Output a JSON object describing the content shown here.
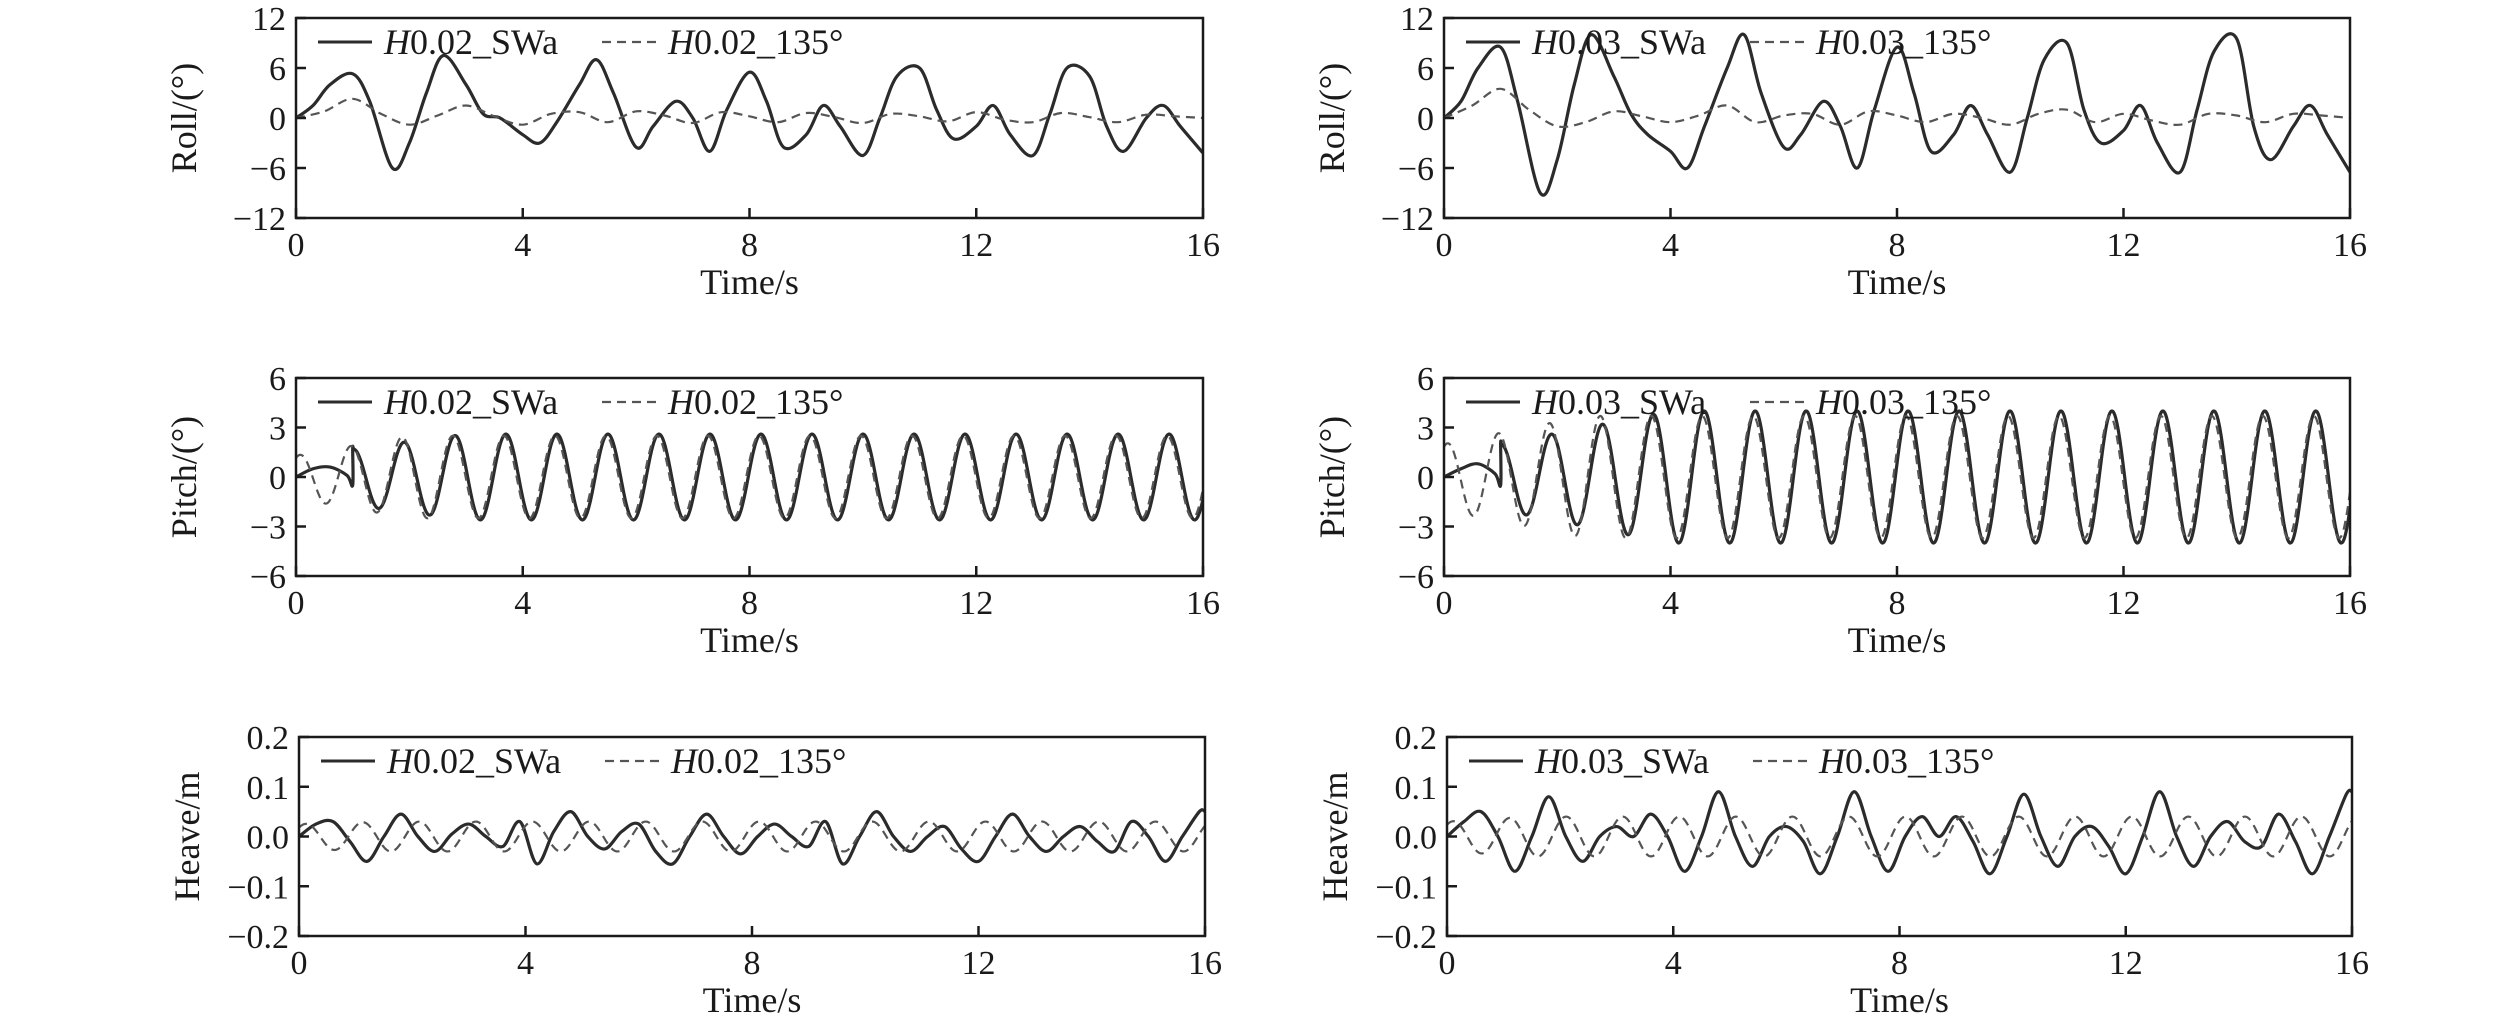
{
  "chart_data": [
    {
      "type": "line",
      "panel": "roll-h002",
      "xlabel": "Time/s",
      "ylabel": "Roll/(°)",
      "xlim": [
        0,
        16
      ],
      "ylim": [
        -12,
        12
      ],
      "xticks": [
        "0",
        "4",
        "8",
        "12",
        "16"
      ],
      "yticks": [
        "−12",
        "−6",
        "0",
        "6",
        "12"
      ],
      "legend_position": "top-left",
      "grid": false,
      "series": [
        {
          "name": "H0.02_SWa",
          "name_prefix": "H",
          "name_suffix": "0.02_SWa",
          "style": "solid",
          "x": [
            0,
            0.3,
            0.6,
            1.0,
            1.3,
            1.7,
            2.0,
            2.3,
            2.6,
            3.0,
            3.3,
            3.6,
            4.0,
            4.3,
            4.6,
            5.0,
            5.3,
            5.6,
            6.0,
            6.3,
            6.7,
            7.0,
            7.3,
            7.6,
            8.0,
            8.3,
            8.6,
            9.0,
            9.3,
            9.6,
            10.0,
            10.3,
            10.6,
            11.0,
            11.3,
            11.6,
            12.0,
            12.3,
            12.6,
            13.0,
            13.3,
            13.6,
            14.0,
            14.3,
            14.6,
            15.0,
            15.3,
            15.6,
            16.0
          ],
          "y": [
            0,
            1.5,
            4,
            5.3,
            2,
            -6,
            -3,
            3,
            7.5,
            4,
            0.5,
            0,
            -2,
            -3,
            -0.5,
            4,
            7,
            3,
            -3.5,
            -1,
            2,
            0,
            -4,
            1,
            5.5,
            2,
            -3.5,
            -2,
            1.5,
            -1,
            -4.5,
            0,
            5,
            6,
            1,
            -2.5,
            -1,
            1.5,
            -2,
            -4.5,
            0.5,
            6,
            5,
            -1,
            -4,
            0,
            1.5,
            -1,
            -4.2
          ]
        },
        {
          "name": "H0.02_135°",
          "name_prefix": "H",
          "name_suffix": "0.02_135°",
          "style": "dashed",
          "x": [
            0,
            0.5,
            1.0,
            1.5,
            2.0,
            2.5,
            3.0,
            3.5,
            4.0,
            4.5,
            5.0,
            5.5,
            6.0,
            6.5,
            7.0,
            7.5,
            8.0,
            8.5,
            9.0,
            9.5,
            10.0,
            10.5,
            11.0,
            11.5,
            12.0,
            12.5,
            13.0,
            13.5,
            14.0,
            14.5,
            15.0,
            15.5,
            16.0
          ],
          "y": [
            0,
            0.8,
            2.3,
            0.5,
            -0.8,
            0.3,
            1.5,
            0.2,
            -0.8,
            0.5,
            0.7,
            -0.5,
            0.8,
            0.3,
            -0.6,
            0.7,
            0.2,
            -0.5,
            0.6,
            0.1,
            -0.6,
            0.5,
            0.2,
            -0.4,
            0.7,
            -0.2,
            -0.5,
            0.6,
            0.1,
            -0.5,
            0.4,
            0.2,
            0
          ]
        }
      ]
    },
    {
      "type": "line",
      "panel": "roll-h003",
      "xlabel": "Time/s",
      "ylabel": "Roll/(°)",
      "xlim": [
        0,
        16
      ],
      "ylim": [
        -12,
        12
      ],
      "xticks": [
        "0",
        "4",
        "8",
        "12",
        "16"
      ],
      "yticks": [
        "−12",
        "−6",
        "0",
        "6",
        "12"
      ],
      "legend_position": "top-left",
      "grid": false,
      "series": [
        {
          "name": "H0.03_SWa",
          "name_prefix": "H",
          "name_suffix": "0.03_SWa",
          "style": "solid",
          "x": [
            0,
            0.3,
            0.6,
            1.0,
            1.3,
            1.7,
            2.0,
            2.3,
            2.6,
            3.0,
            3.3,
            3.6,
            4.0,
            4.3,
            4.6,
            5.0,
            5.3,
            5.6,
            6.0,
            6.3,
            6.7,
            7.0,
            7.3,
            7.6,
            8.0,
            8.3,
            8.6,
            9.0,
            9.3,
            9.6,
            10.0,
            10.3,
            10.6,
            11.0,
            11.3,
            11.6,
            12.0,
            12.3,
            12.6,
            13.0,
            13.3,
            13.6,
            14.0,
            14.3,
            14.6,
            15.0,
            15.3,
            15.6,
            16.0
          ],
          "y": [
            0,
            2,
            6,
            8.5,
            2,
            -9,
            -5,
            4,
            10,
            5,
            0.5,
            -2,
            -4,
            -6,
            -1,
            6,
            10,
            3,
            -3.5,
            -2,
            2,
            -1,
            -6,
            1,
            8.5,
            3,
            -4,
            -2,
            1.5,
            -2,
            -6.5,
            0,
            7,
            9,
            1,
            -3,
            -1.5,
            1.5,
            -3,
            -6.5,
            1,
            8,
            9.5,
            -1,
            -5,
            -1,
            1.5,
            -2,
            -6.5
          ]
        },
        {
          "name": "H0.03_135°",
          "name_prefix": "H",
          "name_suffix": "0.03_135°",
          "style": "dashed",
          "x": [
            0,
            0.5,
            1.0,
            1.5,
            2.0,
            2.5,
            3.0,
            3.5,
            4.0,
            4.5,
            5.0,
            5.5,
            6.0,
            6.5,
            7.0,
            7.5,
            8.0,
            8.5,
            9.0,
            9.5,
            10.0,
            10.5,
            11.0,
            11.5,
            12.0,
            12.5,
            13.0,
            13.5,
            14.0,
            14.5,
            15.0,
            15.5,
            16.0
          ],
          "y": [
            0,
            1.5,
            3.5,
            1,
            -1,
            -0.5,
            0.8,
            0.2,
            -0.5,
            0.3,
            1.5,
            -0.5,
            0.3,
            0.5,
            -0.8,
            0.8,
            0.3,
            -0.5,
            0.5,
            0,
            -0.8,
            0.5,
            1,
            -0.5,
            0.5,
            -0.3,
            -0.8,
            0.5,
            0.3,
            -0.5,
            0.5,
            0.3,
            0
          ]
        }
      ]
    },
    {
      "type": "line",
      "panel": "pitch-h002",
      "xlabel": "Time/s",
      "ylabel": "Pitch/(°)",
      "xlim": [
        0,
        16
      ],
      "ylim": [
        -6,
        6
      ],
      "xticks": [
        "0",
        "4",
        "8",
        "12",
        "16"
      ],
      "yticks": [
        "−6",
        "−3",
        "0",
        "3",
        "6"
      ],
      "legend_position": "top-left",
      "grid": false,
      "series": [
        {
          "name": "H0.02_SWa",
          "name_prefix": "H",
          "name_suffix": "0.02_SWa",
          "style": "solid",
          "oscillation": {
            "t_start": 1.0,
            "t_end": 16,
            "period": 0.9,
            "phase": 1.55,
            "amp_start": 1.7,
            "amp_end": 2.6,
            "ramp_until": 3.0,
            "lead_x": [
              0,
              0.3,
              0.6,
              0.9,
              1.0
            ],
            "lead_y": [
              0,
              0.5,
              0.6,
              0.1,
              -0.5
            ]
          }
        },
        {
          "name": "H0.02_135°",
          "name_prefix": "H",
          "name_suffix": "0.02_135°",
          "style": "dashed",
          "oscillation": {
            "t_start": 0,
            "t_end": 16,
            "period": 0.9,
            "phase": 1.1,
            "amp_start": 1.3,
            "amp_end": 2.5,
            "ramp_until": 2.0,
            "lead_x": [],
            "lead_y": []
          }
        }
      ]
    },
    {
      "type": "line",
      "panel": "pitch-h003",
      "xlabel": "Time/s",
      "ylabel": "Pitch/(°)",
      "xlim": [
        0,
        16
      ],
      "ylim": [
        -6,
        6
      ],
      "xticks": [
        "0",
        "4",
        "8",
        "12",
        "16"
      ],
      "yticks": [
        "−6",
        "−3",
        "0",
        "3",
        "6"
      ],
      "legend_position": "top-left",
      "grid": false,
      "series": [
        {
          "name": "H0.03_SWa",
          "name_prefix": "H",
          "name_suffix": "0.03_SWa",
          "style": "solid",
          "oscillation": {
            "t_start": 1.0,
            "t_end": 16,
            "period": 0.9,
            "phase": 1.6,
            "amp_start": 2.0,
            "amp_end": 4.0,
            "ramp_until": 4.0,
            "lead_x": [
              0,
              0.3,
              0.6,
              0.9,
              1.0
            ],
            "lead_y": [
              0,
              0.5,
              0.8,
              0.2,
              -0.5
            ]
          }
        },
        {
          "name": "H0.03_135°",
          "name_prefix": "H",
          "name_suffix": "0.03_135°",
          "style": "dashed",
          "oscillation": {
            "t_start": 0,
            "t_end": 16,
            "period": 0.9,
            "phase": 1.15,
            "amp_start": 2.0,
            "amp_end": 3.7,
            "ramp_until": 2.5,
            "lead_x": [],
            "lead_y": []
          }
        }
      ]
    },
    {
      "type": "line",
      "panel": "heave-h002",
      "xlabel": "Time/s",
      "ylabel": "Heave/m",
      "xlim": [
        0,
        16
      ],
      "ylim": [
        -0.2,
        0.2
      ],
      "xticks": [
        "0",
        "4",
        "8",
        "12",
        "16"
      ],
      "yticks": [
        "−0.2",
        "−0.1",
        "0.0",
        "0.1",
        "0.2"
      ],
      "legend_position": "top-left",
      "grid": false,
      "series": [
        {
          "name": "H0.02_SWa",
          "name_prefix": "H",
          "name_suffix": "0.02_SWa",
          "style": "solid",
          "x": [
            0,
            0.3,
            0.6,
            0.9,
            1.2,
            1.5,
            1.8,
            2.1,
            2.4,
            2.7,
            3.0,
            3.3,
            3.6,
            3.9,
            4.2,
            4.5,
            4.8,
            5.1,
            5.4,
            5.7,
            6.0,
            6.3,
            6.6,
            6.9,
            7.2,
            7.5,
            7.8,
            8.1,
            8.4,
            8.7,
            9.0,
            9.3,
            9.6,
            9.9,
            10.2,
            10.5,
            10.8,
            11.1,
            11.4,
            11.7,
            12.0,
            12.3,
            12.6,
            12.9,
            13.2,
            13.5,
            13.8,
            14.1,
            14.4,
            14.7,
            15.0,
            15.3,
            15.6,
            15.9,
            16.0
          ],
          "y": [
            0,
            0.025,
            0.03,
            -0.01,
            -0.05,
            0,
            0.045,
            0,
            -0.03,
            0.005,
            0.025,
            0,
            -0.02,
            0.03,
            -0.055,
            0.01,
            0.05,
            0,
            -0.025,
            0.01,
            0.025,
            -0.03,
            -0.055,
            0,
            0.045,
            0,
            -0.035,
            0,
            0.025,
            0,
            -0.02,
            0.03,
            -0.055,
            0,
            0.05,
            0,
            -0.03,
            0,
            0.02,
            -0.025,
            -0.05,
            0,
            0.045,
            0,
            -0.03,
            0,
            0.02,
            -0.01,
            -0.03,
            0.03,
            0,
            -0.05,
            0,
            0.05,
            0.05
          ]
        },
        {
          "name": "H0.02_135°",
          "name_prefix": "H",
          "name_suffix": "0.02_135°",
          "style": "dashed",
          "oscillation": {
            "t_start": 0,
            "t_end": 16,
            "period": 1.0,
            "phase": 0.8,
            "amp_start": 0.025,
            "amp_end": 0.03,
            "ramp_until": 1.5,
            "lead_x": [],
            "lead_y": []
          }
        }
      ]
    },
    {
      "type": "line",
      "panel": "heave-h003",
      "xlabel": "Time/s",
      "ylabel": "Heave/m",
      "xlim": [
        0,
        16
      ],
      "ylim": [
        -0.2,
        0.2
      ],
      "xticks": [
        "0",
        "4",
        "8",
        "12",
        "16"
      ],
      "yticks": [
        "−0.2",
        "−0.1",
        "0.0",
        "0.1",
        "0.2"
      ],
      "legend_position": "top-left",
      "grid": false,
      "series": [
        {
          "name": "H0.03_SWa",
          "name_prefix": "H",
          "name_suffix": "0.03_SWa",
          "style": "solid",
          "x": [
            0,
            0.3,
            0.6,
            0.9,
            1.2,
            1.5,
            1.8,
            2.1,
            2.4,
            2.7,
            3.0,
            3.3,
            3.6,
            3.9,
            4.2,
            4.5,
            4.8,
            5.1,
            5.4,
            5.7,
            6.0,
            6.3,
            6.6,
            6.9,
            7.2,
            7.5,
            7.8,
            8.1,
            8.4,
            8.7,
            9.0,
            9.3,
            9.6,
            9.9,
            10.2,
            10.5,
            10.8,
            11.1,
            11.4,
            11.7,
            12.0,
            12.3,
            12.6,
            12.9,
            13.2,
            13.5,
            13.8,
            14.1,
            14.4,
            14.7,
            15.0,
            15.3,
            15.6,
            15.9,
            16.0
          ],
          "y": [
            0,
            0.03,
            0.05,
            0,
            -0.07,
            0,
            0.08,
            0,
            -0.05,
            0,
            0.02,
            0,
            0.045,
            0,
            -0.07,
            0,
            0.09,
            0,
            -0.06,
            0,
            0.02,
            -0.01,
            -0.075,
            0,
            0.09,
            0,
            -0.07,
            0,
            0.04,
            0,
            0.04,
            -0.01,
            -0.075,
            0,
            0.085,
            0,
            -0.06,
            0,
            0.02,
            -0.02,
            -0.075,
            0,
            0.09,
            0,
            -0.06,
            0,
            0.03,
            -0.01,
            -0.02,
            0.045,
            -0.01,
            -0.075,
            0,
            0.085,
            0.09
          ]
        },
        {
          "name": "H0.03_135°",
          "name_prefix": "H",
          "name_suffix": "0.03_135°",
          "style": "dashed",
          "oscillation": {
            "t_start": 0,
            "t_end": 16,
            "period": 1.0,
            "phase": 0.9,
            "amp_start": 0.03,
            "amp_end": 0.04,
            "ramp_until": 1.5,
            "lead_x": [],
            "lead_y": []
          }
        }
      ]
    }
  ]
}
